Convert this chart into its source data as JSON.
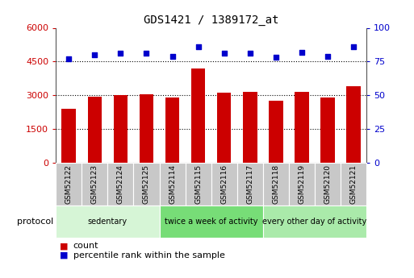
{
  "title": "GDS1421 / 1389172_at",
  "samples": [
    "GSM52122",
    "GSM52123",
    "GSM52124",
    "GSM52125",
    "GSM52114",
    "GSM52115",
    "GSM52116",
    "GSM52117",
    "GSM52118",
    "GSM52119",
    "GSM52120",
    "GSM52121"
  ],
  "counts": [
    2400,
    2950,
    3000,
    3050,
    2900,
    4200,
    3100,
    3150,
    2750,
    3150,
    2900,
    3400
  ],
  "percentiles": [
    77,
    80,
    81,
    81,
    79,
    86,
    81,
    81,
    78,
    82,
    79,
    86
  ],
  "groups": [
    {
      "label": "sedentary",
      "start": 0,
      "end": 4,
      "color": "#d6f5d6"
    },
    {
      "label": "twice a week of activity",
      "start": 4,
      "end": 8,
      "color": "#77dd77"
    },
    {
      "label": "every other day of activity",
      "start": 8,
      "end": 12,
      "color": "#aaeaaa"
    }
  ],
  "bar_color": "#cc0000",
  "dot_color": "#0000cc",
  "left_axis_color": "#cc0000",
  "right_axis_color": "#0000cc",
  "ylim_left": [
    0,
    6000
  ],
  "ylim_right": [
    0,
    100
  ],
  "left_ticks": [
    0,
    1500,
    3000,
    4500,
    6000
  ],
  "right_ticks": [
    0,
    25,
    50,
    75,
    100
  ],
  "legend": [
    {
      "color": "#cc0000",
      "label": "count"
    },
    {
      "color": "#0000cc",
      "label": "percentile rank within the sample"
    }
  ],
  "bg_color": "#ffffff",
  "sample_box_color": "#c8c8c8",
  "grid_color": "#000000",
  "bar_width": 0.55,
  "protocol_arrow_color": "#888888"
}
